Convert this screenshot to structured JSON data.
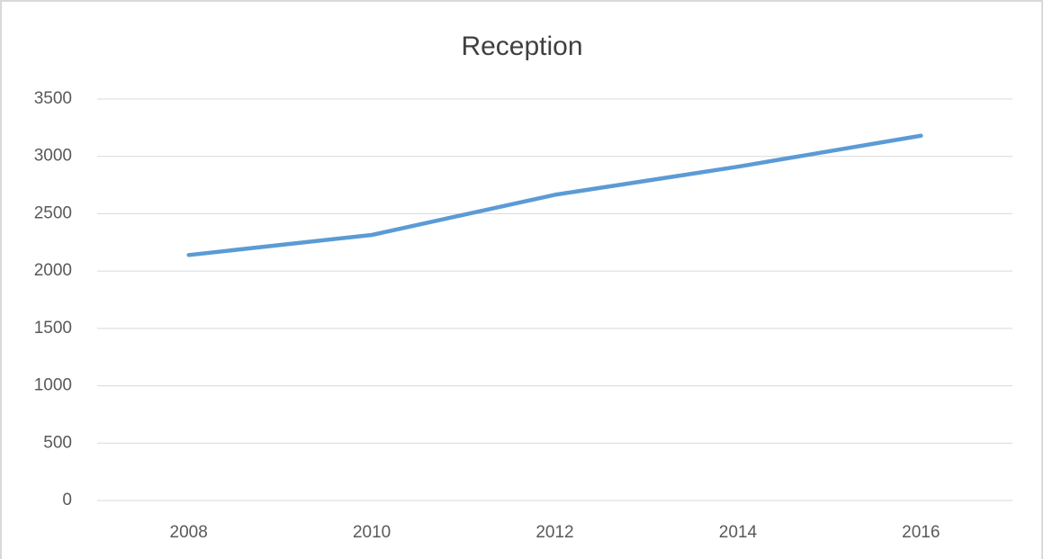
{
  "chart_data": {
    "type": "line",
    "title": "Reception",
    "categories": [
      "2008",
      "2010",
      "2012",
      "2014",
      "2016"
    ],
    "series": [
      {
        "name": "Reception",
        "color": "#5b9bd5",
        "values": [
          2140,
          2315,
          2665,
          2910,
          3180
        ]
      }
    ],
    "ylim": [
      0,
      3500
    ],
    "yticks": [
      0,
      500,
      1000,
      1500,
      2000,
      2500,
      3000,
      3500
    ],
    "grid": true
  }
}
